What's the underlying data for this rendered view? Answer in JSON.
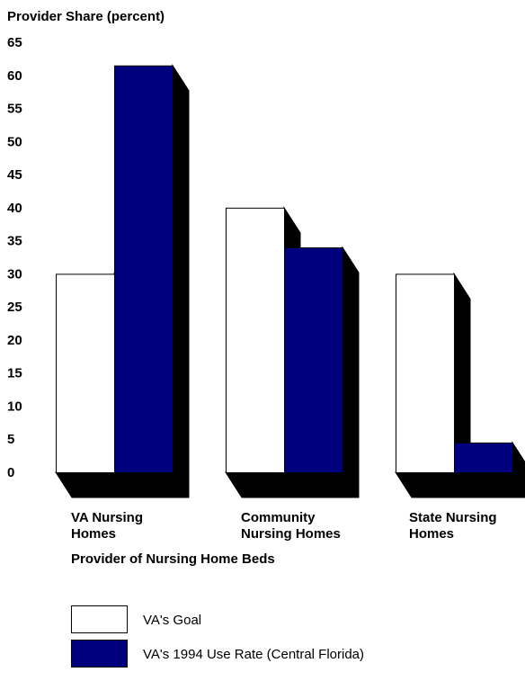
{
  "chart_data": {
    "type": "bar",
    "title": "",
    "ylabel": "Provider Share (percent)",
    "xlabel": "Provider of Nursing Home Beds",
    "ylim": [
      0,
      65
    ],
    "yticks": [
      0,
      5,
      10,
      15,
      20,
      25,
      30,
      35,
      40,
      45,
      50,
      55,
      60,
      65
    ],
    "categories": [
      [
        "VA Nursing",
        "Homes"
      ],
      [
        "Community",
        "Nursing Homes"
      ],
      [
        "State Nursing",
        "Homes"
      ]
    ],
    "series": [
      {
        "name": "VA's Goal",
        "color": "#ffffff",
        "values": [
          30,
          40,
          30
        ]
      },
      {
        "name": "VA's 1994 Use Rate (Central Florida)",
        "color": "#00007f",
        "values": [
          61.5,
          34,
          4.5
        ]
      }
    ],
    "legend_position": "bottom-left",
    "style": "3d-shadow"
  }
}
